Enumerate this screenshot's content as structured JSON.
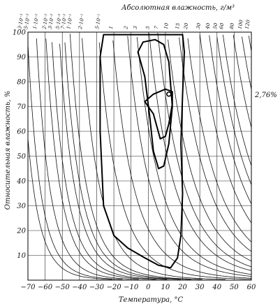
{
  "chart_data": {
    "type": "line",
    "title": "Абсолютная влажность, г/м³",
    "xlabel": "Температура, °С",
    "ylabel": "Относительная влажность, %",
    "xlim": [
      -70,
      60
    ],
    "ylim": [
      0,
      100
    ],
    "x_ticks": [
      -70,
      -60,
      -50,
      -40,
      -30,
      -20,
      -10,
      0,
      10,
      20,
      30,
      40,
      50,
      60
    ],
    "x_tick_labels": [
      "−70",
      "−60",
      "−50",
      "−40",
      "−30",
      "−20",
      "−10",
      "0",
      "10",
      "20",
      "30",
      "40",
      "50",
      "60"
    ],
    "y_ticks": [
      10,
      20,
      30,
      40,
      50,
      60,
      70,
      80,
      90,
      100
    ],
    "grid": true,
    "isolines": [
      {
        "label": "3·10⁻³",
        "value": 0.003
      },
      {
        "label": "5·10⁻³",
        "value": 0.005
      },
      {
        "label": "1·10⁻²",
        "value": 0.01
      },
      {
        "label": "2·10⁻²",
        "value": 0.02
      },
      {
        "label": "3·10⁻²",
        "value": 0.03
      },
      {
        "label": "5·10⁻²",
        "value": 0.05
      },
      {
        "label": "7·10⁻²",
        "value": 0.07
      },
      {
        "label": "1·10⁻¹",
        "value": 0.1
      },
      {
        "label": "2·10⁻¹",
        "value": 0.2
      },
      {
        "label": "5·10⁻¹",
        "value": 0.5
      },
      {
        "label": "1",
        "value": 1
      },
      {
        "label": "2",
        "value": 2
      },
      {
        "label": "3",
        "value": 3
      },
      {
        "label": "5",
        "value": 5
      },
      {
        "label": "7",
        "value": 7
      },
      {
        "label": "10",
        "value": 10
      },
      {
        "label": "15",
        "value": 15
      },
      {
        "label": "20",
        "value": 20
      },
      {
        "label": "30",
        "value": 30
      },
      {
        "label": "40",
        "value": 40
      },
      {
        "label": "50",
        "value": 50
      },
      {
        "label": "60",
        "value": 60
      },
      {
        "label": "80",
        "value": 80
      },
      {
        "label": "100",
        "value": 100
      },
      {
        "label": "120",
        "value": 120
      }
    ],
    "contours": [
      {
        "points": [
          [
            -26,
            99
          ],
          [
            20,
            99
          ],
          [
            21,
            92
          ],
          [
            20,
            75
          ],
          [
            19,
            55
          ],
          [
            20,
            35
          ],
          [
            19,
            18
          ],
          [
            17,
            9
          ],
          [
            13,
            5
          ],
          [
            6,
            6
          ],
          [
            -2,
            9
          ],
          [
            -12,
            13
          ],
          [
            -20,
            18
          ],
          [
            -26,
            30
          ],
          [
            -28,
            60
          ],
          [
            -28,
            90
          ],
          [
            -26,
            99
          ]
        ]
      },
      {
        "points": [
          [
            -6,
            92
          ],
          [
            -3,
            96
          ],
          [
            4,
            97
          ],
          [
            9,
            95
          ],
          [
            12,
            88
          ],
          [
            14,
            70
          ],
          [
            12,
            55
          ],
          [
            9,
            46
          ],
          [
            6,
            45
          ],
          [
            3,
            52
          ],
          [
            1,
            65
          ],
          [
            -2,
            82
          ],
          [
            -6,
            92
          ]
        ]
      },
      {
        "points": [
          [
            -2,
            72
          ],
          [
            3,
            75
          ],
          [
            10,
            77
          ],
          [
            14,
            76
          ],
          [
            14,
            71
          ],
          [
            12,
            63
          ],
          [
            10,
            58
          ],
          [
            7,
            57
          ],
          [
            5,
            62
          ],
          [
            3,
            67
          ],
          [
            -2,
            72
          ]
        ]
      }
    ],
    "marker": {
      "x": 12,
      "y": 75
    },
    "annotation": "2,76%"
  }
}
